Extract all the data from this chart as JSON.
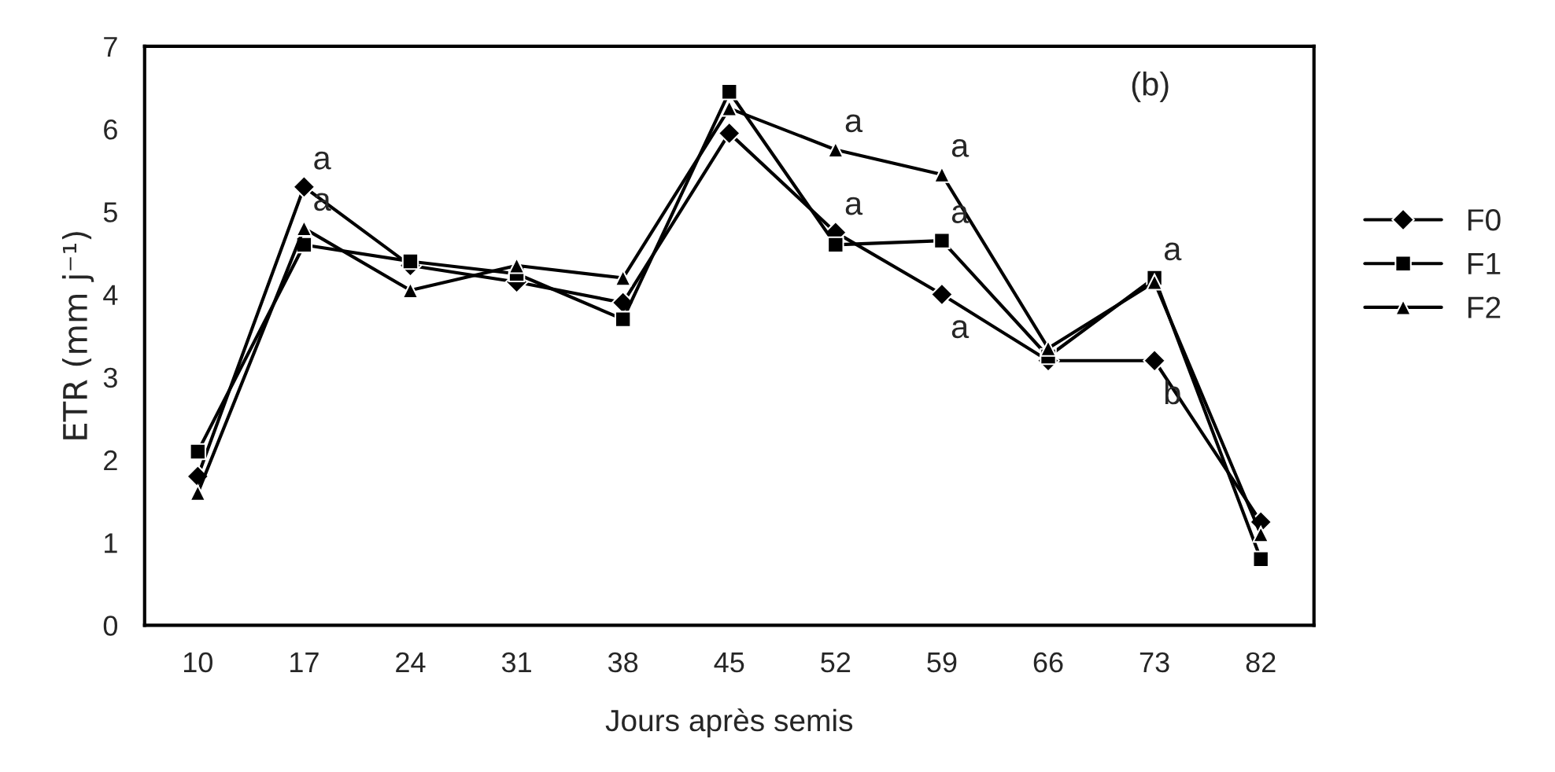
{
  "chart_data": {
    "type": "line",
    "categories": [
      "10",
      "17",
      "24",
      "31",
      "38",
      "45",
      "52",
      "59",
      "66",
      "73",
      "82"
    ],
    "series": [
      {
        "name": "F0",
        "color": "#000000",
        "marker": "diamond",
        "values": [
          1.8,
          5.3,
          4.35,
          4.15,
          3.9,
          5.95,
          4.75,
          4.0,
          3.2,
          3.2,
          1.25
        ]
      },
      {
        "name": "F1",
        "color": "#000000",
        "marker": "square",
        "values": [
          2.1,
          4.6,
          4.4,
          4.25,
          3.7,
          6.45,
          4.6,
          4.65,
          3.25,
          4.2,
          0.8
        ]
      },
      {
        "name": "F2",
        "color": "#000000",
        "marker": "triangle",
        "values": [
          1.6,
          4.8,
          4.05,
          4.35,
          4.2,
          6.25,
          5.75,
          5.45,
          3.35,
          4.15,
          1.1
        ]
      }
    ],
    "xlabel": "Jours après semis",
    "ylabel": "ETR (mm j⁻¹)",
    "ylim": [
      0,
      7
    ],
    "yticks": [
      0,
      1,
      2,
      3,
      4,
      5,
      6,
      7
    ],
    "annotations": [
      "(b)",
      {
        "text": "a",
        "x": "17",
        "y": 5.3
      },
      {
        "text": "a",
        "x": "17",
        "y": 4.8
      },
      {
        "text": "a",
        "x": "52",
        "y": 5.75
      },
      {
        "text": "a",
        "x": "52",
        "y": 4.75
      },
      {
        "text": "a",
        "x": "59",
        "y": 5.45
      },
      {
        "text": "a",
        "x": "59",
        "y": 4.65
      },
      {
        "text": "a",
        "x": "59",
        "y": 4.0
      },
      {
        "text": "a",
        "x": "73",
        "y": 4.2
      },
      {
        "text": "b",
        "x": "73",
        "y": 3.2
      }
    ],
    "legend": "right",
    "grid": false,
    "line_style": "solid"
  }
}
